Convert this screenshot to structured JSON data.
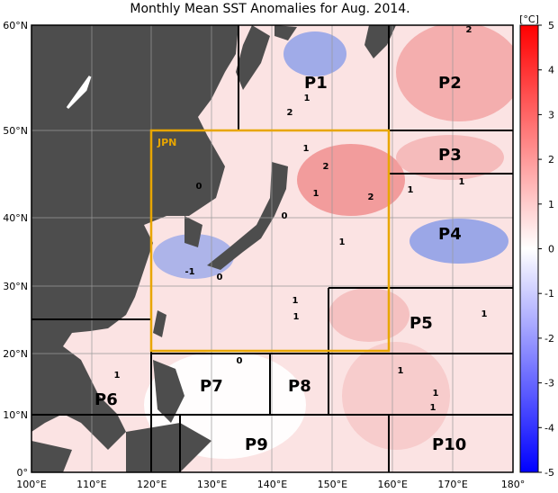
{
  "title": "Monthly Mean SST Anomalies for Aug. 2014.",
  "colorbar": {
    "unit": "[°C]",
    "ticks": [
      "5",
      "4",
      "3",
      "2",
      "1",
      "0",
      "-1",
      "-2",
      "-3",
      "-4",
      "-5"
    ]
  },
  "lon_labels": [
    "100°E",
    "110°E",
    "120°E",
    "130°E",
    "140°E",
    "150°E",
    "160°E",
    "170°E",
    "180°"
  ],
  "lat_labels": [
    "60°N",
    "50°N",
    "40°N",
    "30°N",
    "20°N",
    "10°N",
    "0°"
  ],
  "areas": {
    "jpn": "JPN",
    "p1": "P1",
    "p2": "P2",
    "p3": "P3",
    "p4": "P4",
    "p5": "P5",
    "p6": "P6",
    "p7": "P7",
    "p8": "P8",
    "p9": "P9",
    "p10": "P10"
  },
  "contour_labels": [
    "2",
    "1",
    "2",
    "1",
    "2",
    "1",
    "2",
    "1",
    "0",
    "0",
    "-1",
    "0",
    "1",
    "1",
    "1",
    "1",
    "0",
    "1",
    "1",
    "1",
    "1",
    "1"
  ]
}
